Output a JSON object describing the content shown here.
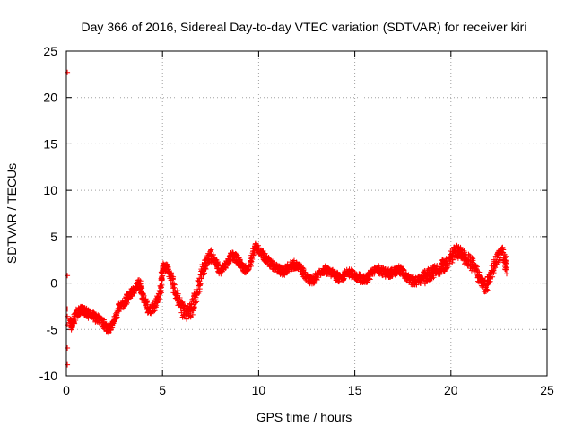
{
  "chart_data": {
    "type": "scatter",
    "title": "Day 366 of 2016, Sidereal Day-to-day VTEC variation (SDTVAR) for receiver kiri",
    "xlabel": "GPS time / hours",
    "ylabel": "SDTVAR / TECUs",
    "xlim": [
      0,
      25
    ],
    "ylim": [
      -10,
      25
    ],
    "xticks": [
      0,
      5,
      10,
      15,
      20,
      25
    ],
    "yticks": [
      -10,
      -5,
      0,
      5,
      10,
      15,
      20,
      25
    ],
    "grid": true,
    "marker": "+",
    "series": [
      {
        "name": "sdtvar",
        "color": "#ff0000",
        "x": [
          0.05,
          0.05,
          0.05,
          0.05,
          0.05,
          0.05,
          0.05,
          0.2,
          0.3,
          0.5,
          0.8,
          1.0,
          1.3,
          1.6,
          1.9,
          2.2,
          2.4,
          2.7,
          3.0,
          3.2,
          3.5,
          3.8,
          4.0,
          4.3,
          4.6,
          4.9,
          5.0,
          5.3,
          5.6,
          5.9,
          6.2,
          6.5,
          6.8,
          7.1,
          7.4,
          7.7,
          8.0,
          8.3,
          8.6,
          8.9,
          9.2,
          9.5,
          9.8,
          10.1,
          10.4,
          10.7,
          11.0,
          11.3,
          11.6,
          11.9,
          12.2,
          12.5,
          12.8,
          13.1,
          13.4,
          13.7,
          14.0,
          14.3,
          14.6,
          14.9,
          15.2,
          15.5,
          15.8,
          16.1,
          16.4,
          16.7,
          17.0,
          17.3,
          17.6,
          17.9,
          18.2,
          18.5,
          18.8,
          19.1,
          19.4,
          19.7,
          20.0,
          20.3,
          20.6,
          20.9,
          21.2,
          21.5,
          21.8,
          22.1,
          22.4,
          22.7,
          22.9
        ],
        "y": [
          22.7,
          0.8,
          -2.8,
          -3.6,
          -7.0,
          -8.8,
          -4.5,
          -4.0,
          -4.8,
          -3.2,
          -2.9,
          -3.1,
          -3.5,
          -3.8,
          -4.3,
          -5.0,
          -4.5,
          -2.8,
          -2.2,
          -1.5,
          -0.8,
          0.0,
          -1.5,
          -3.0,
          -2.5,
          -1.0,
          1.8,
          1.5,
          -0.5,
          -2.3,
          -3.3,
          -2.8,
          -1.0,
          1.5,
          3.0,
          2.5,
          1.2,
          2.0,
          3.0,
          2.5,
          1.6,
          1.5,
          4.0,
          3.3,
          2.6,
          2.0,
          1.5,
          1.2,
          1.8,
          2.0,
          1.5,
          0.5,
          0.2,
          1.0,
          1.5,
          1.2,
          0.8,
          0.4,
          1.1,
          1.0,
          0.6,
          0.3,
          0.9,
          1.5,
          1.3,
          1.0,
          1.2,
          1.5,
          0.9,
          0.3,
          0.2,
          0.5,
          0.8,
          1.2,
          1.5,
          2.0,
          2.8,
          3.5,
          3.0,
          2.5,
          1.8,
          0.5,
          -0.5,
          1.2,
          2.8,
          3.3,
          1.5
        ]
      }
    ]
  }
}
